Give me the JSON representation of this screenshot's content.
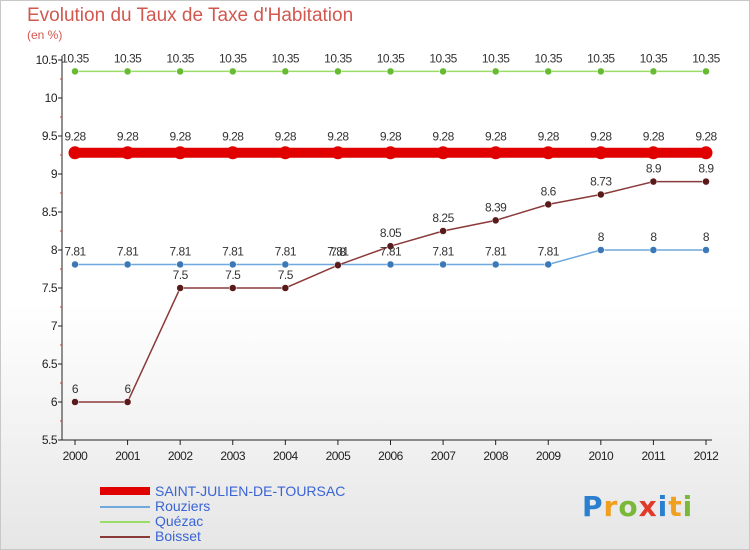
{
  "title": "Evolution du Taux de Taxe d'Habitation",
  "subtitle": "(en %)",
  "logo": {
    "text": "Proxiti",
    "letters": [
      {
        "ch": "P",
        "color": "#2b7fd0"
      },
      {
        "ch": "r",
        "color": "#f0a020"
      },
      {
        "ch": "o",
        "color": "#7ab83a"
      },
      {
        "ch": "x",
        "color": "#e03a2a"
      },
      {
        "ch": "i",
        "color": "#2b7fd0"
      },
      {
        "ch": "t",
        "color": "#f0a020"
      },
      {
        "ch": "i",
        "color": "#7ab83a"
      }
    ]
  },
  "chart_data": {
    "type": "line",
    "title": "Evolution du Taux de Taxe d'Habitation",
    "ylabel": "(en %)",
    "xlabel": "",
    "x": [
      "2000",
      "2001",
      "2002",
      "2003",
      "2004",
      "2005",
      "2006",
      "2007",
      "2008",
      "2009",
      "2010",
      "2011",
      "2012"
    ],
    "ylim": [
      5.5,
      10.5
    ],
    "yticks": [
      "5.5",
      "6",
      "6.5",
      "7",
      "7.5",
      "8",
      "8.5",
      "9",
      "9.5",
      "10",
      "10.5"
    ],
    "grid": false,
    "legend_position": "bottom-left",
    "series": [
      {
        "name": "SAINT-JULIEN-DE-TOURSAC",
        "color": "#e00000",
        "highlight": true,
        "values": [
          9.28,
          9.28,
          9.28,
          9.28,
          9.28,
          9.28,
          9.28,
          9.28,
          9.28,
          9.28,
          9.28,
          9.28,
          9.28
        ],
        "labels": [
          "9.28",
          "9.28",
          "9.28",
          "9.28",
          "9.28",
          "9.28",
          "9.28",
          "9.28",
          "9.28",
          "9.28",
          "9.28",
          "9.28",
          "9.28"
        ]
      },
      {
        "name": "Rouziers",
        "color": "#6fa8dc",
        "marker": "#3a78b8",
        "values": [
          7.81,
          7.81,
          7.81,
          7.81,
          7.81,
          7.81,
          7.81,
          7.81,
          7.81,
          7.81,
          8,
          8,
          8
        ],
        "labels": [
          "7.81",
          "7.81",
          "7.81",
          "7.81",
          "7.81",
          "7.81",
          "7.81",
          "7.81",
          "7.81",
          "7.81",
          "8",
          "8",
          "8"
        ]
      },
      {
        "name": "Quézac",
        "color": "#99dd66",
        "marker": "#66bb33",
        "values": [
          10.35,
          10.35,
          10.35,
          10.35,
          10.35,
          10.35,
          10.35,
          10.35,
          10.35,
          10.35,
          10.35,
          10.35,
          10.35
        ],
        "labels": [
          "10.35",
          "10.35",
          "10.35",
          "10.35",
          "10.35",
          "10.35",
          "10.35",
          "10.35",
          "10.35",
          "10.35",
          "10.35",
          "10.35",
          "10.35"
        ]
      },
      {
        "name": "Boisset",
        "color": "#8b3a3a",
        "marker": "#5a1a1a",
        "values": [
          6,
          6,
          7.5,
          7.5,
          7.5,
          7.8,
          8.05,
          8.25,
          8.39,
          8.6,
          8.73,
          8.9,
          8.9
        ],
        "labels": [
          "6",
          "6",
          "7.5",
          "7.5",
          "7.5",
          "7.8",
          "8.05",
          "8.25",
          "8.39",
          "8.6",
          "8.73",
          "8.9",
          "8.9"
        ]
      }
    ]
  }
}
